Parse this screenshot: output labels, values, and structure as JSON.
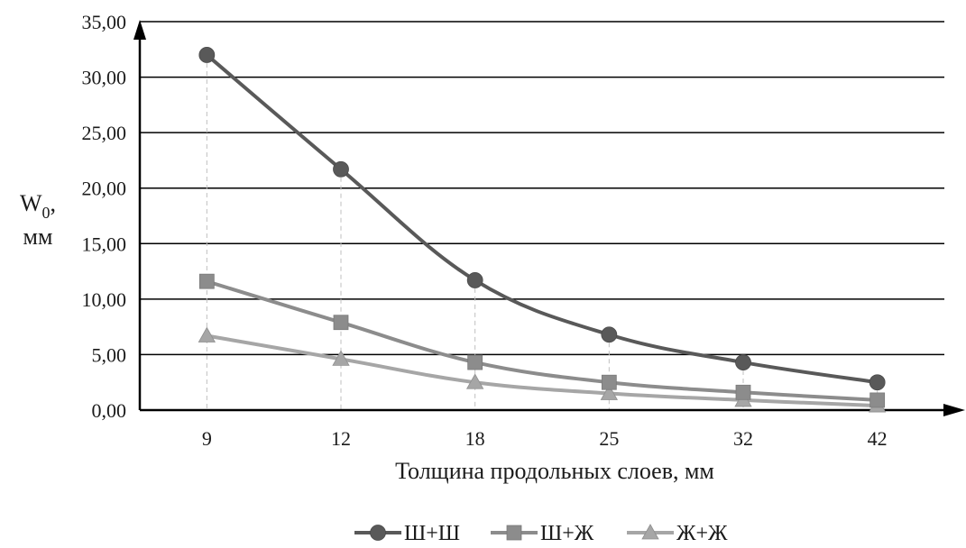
{
  "chart_data": {
    "type": "line",
    "title": "",
    "xlabel": "Толщина продольных слоев, мм",
    "ylabel_main": "W",
    "ylabel_sub": "0",
    "ylabel_suffix": ",",
    "ylabel_unit": "мм",
    "categories": [
      "9",
      "12",
      "18",
      "25",
      "32",
      "42"
    ],
    "ylim": [
      0,
      35
    ],
    "yticks": [
      "0,00",
      "5,00",
      "10,00",
      "15,00",
      "20,00",
      "25,00",
      "30,00",
      "35,00"
    ],
    "grid": true,
    "legend_position": "bottom",
    "series": [
      {
        "name": "Ш+Ш",
        "marker": "circle",
        "color": "#595959",
        "values": [
          32.0,
          21.7,
          11.7,
          6.8,
          4.3,
          2.5
        ]
      },
      {
        "name": "Ш+Ж",
        "marker": "square",
        "color": "#8c8c8c",
        "values": [
          11.6,
          7.9,
          4.3,
          2.5,
          1.6,
          0.9
        ]
      },
      {
        "name": "Ж+Ж",
        "marker": "triangle",
        "color": "#a6a6a6",
        "values": [
          6.7,
          4.6,
          2.5,
          1.5,
          0.9,
          0.4
        ]
      }
    ]
  }
}
